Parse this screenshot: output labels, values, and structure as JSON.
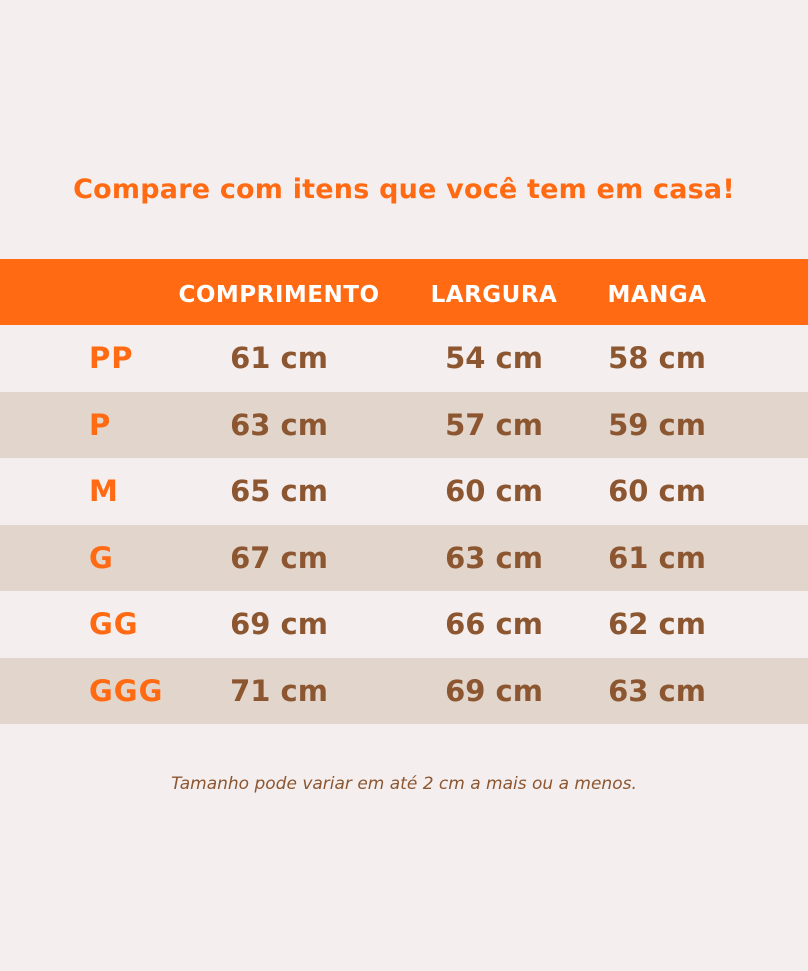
{
  "headline": "Compare com itens que você tem em casa!",
  "table": {
    "headers": [
      "",
      "COMPRIMENTO",
      "LARGURA",
      "MANGA"
    ],
    "rows": [
      {
        "size": "PP",
        "comprimento": "61 cm",
        "largura": "54 cm",
        "manga": "58 cm"
      },
      {
        "size": "P",
        "comprimento": "63 cm",
        "largura": "57 cm",
        "manga": "59 cm"
      },
      {
        "size": "M",
        "comprimento": "65 cm",
        "largura": "60 cm",
        "manga": "60 cm"
      },
      {
        "size": "G",
        "comprimento": "67 cm",
        "largura": "63 cm",
        "manga": "61 cm"
      },
      {
        "size": "GG",
        "comprimento": "69 cm",
        "largura": "66 cm",
        "manga": "62 cm"
      },
      {
        "size": "GGG",
        "comprimento": "71 cm",
        "largura": "69 cm",
        "manga": "63 cm"
      }
    ]
  },
  "footnote": "Tamanho pode variar em até 2 cm a mais ou a menos.",
  "colors": {
    "accent": "#ff6a13",
    "text_brown": "#8c5631",
    "background": "#f4efee",
    "row_shade": "#e2d6cc"
  }
}
